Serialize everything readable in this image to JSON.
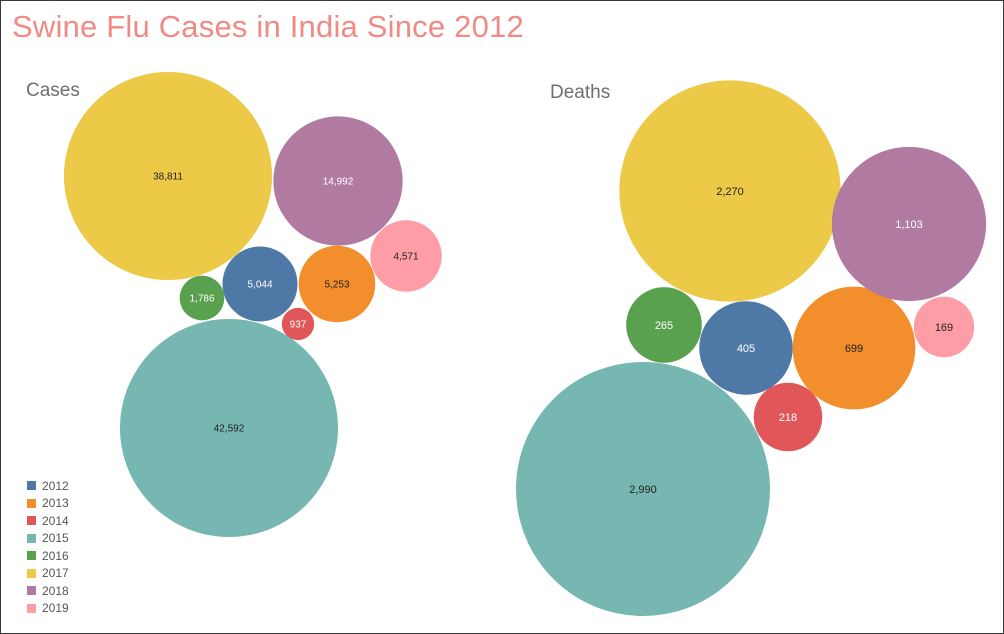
{
  "title": "Swine Flu Cases in India Since 2012",
  "chart_data": [
    {
      "type": "packed-bubble",
      "title": "Cases",
      "metric": "Cases",
      "categories": [
        "2012",
        "2013",
        "2014",
        "2015",
        "2016",
        "2017",
        "2018",
        "2019"
      ],
      "values": [
        5044,
        5253,
        937,
        42592,
        1786,
        38811,
        14992,
        4571
      ],
      "labels": [
        "5,044",
        "5,253",
        "937",
        "42,592",
        "1,786",
        "38,811",
        "14,992",
        "4,571"
      ]
    },
    {
      "type": "packed-bubble",
      "title": "Deaths",
      "metric": "Deaths",
      "categories": [
        "2012",
        "2013",
        "2014",
        "2015",
        "2016",
        "2017",
        "2018",
        "2019"
      ],
      "values": [
        405,
        699,
        218,
        2990,
        265,
        2270,
        1103,
        169
      ],
      "labels": [
        "405",
        "699",
        "218",
        "2,990",
        "265",
        "2,270",
        "1,103",
        "169"
      ]
    }
  ],
  "legend": {
    "items": [
      {
        "label": "2012",
        "color": "#4e79a7"
      },
      {
        "label": "2013",
        "color": "#f28e2b"
      },
      {
        "label": "2014",
        "color": "#e15759"
      },
      {
        "label": "2015",
        "color": "#76b7b2"
      },
      {
        "label": "2016",
        "color": "#59a14f"
      },
      {
        "label": "2017",
        "color": "#edc948"
      },
      {
        "label": "2018",
        "color": "#b07aa1"
      },
      {
        "label": "2019",
        "color": "#ff9da7"
      }
    ]
  },
  "label_colors": {
    "2012": "#ffffff",
    "2013": "#222222",
    "2014": "#ffffff",
    "2015": "#222222",
    "2016": "#ffffff",
    "2017": "#222222",
    "2018": "#ffffff",
    "2019": "#222222"
  }
}
